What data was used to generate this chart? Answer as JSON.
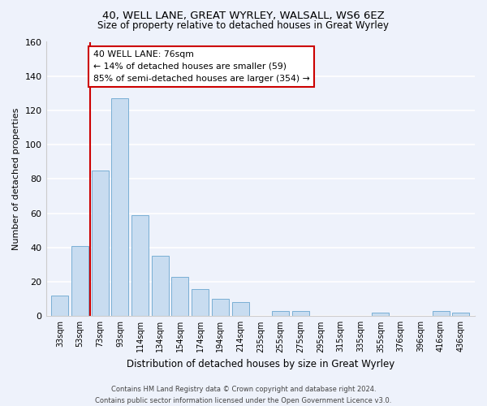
{
  "title": "40, WELL LANE, GREAT WYRLEY, WALSALL, WS6 6EZ",
  "subtitle": "Size of property relative to detached houses in Great Wyrley",
  "xlabel": "Distribution of detached houses by size in Great Wyrley",
  "ylabel": "Number of detached properties",
  "bar_color": "#c8dcf0",
  "bar_edge_color": "#7aafd4",
  "background_color": "#eef2fb",
  "grid_color": "#ffffff",
  "categories": [
    "33sqm",
    "53sqm",
    "73sqm",
    "93sqm",
    "114sqm",
    "134sqm",
    "154sqm",
    "174sqm",
    "194sqm",
    "214sqm",
    "235sqm",
    "255sqm",
    "275sqm",
    "295sqm",
    "315sqm",
    "335sqm",
    "355sqm",
    "376sqm",
    "396sqm",
    "416sqm",
    "436sqm"
  ],
  "values": [
    12,
    41,
    85,
    127,
    59,
    35,
    23,
    16,
    10,
    8,
    0,
    3,
    3,
    0,
    0,
    0,
    2,
    0,
    0,
    3,
    2
  ],
  "ylim": [
    0,
    160
  ],
  "yticks": [
    0,
    20,
    40,
    60,
    80,
    100,
    120,
    140,
    160
  ],
  "annotation_box_text": "40 WELL LANE: 76sqm\n← 14% of detached houses are smaller (59)\n85% of semi-detached houses are larger (354) →",
  "property_line_color": "#cc0000",
  "footer_line1": "Contains HM Land Registry data © Crown copyright and database right 2024.",
  "footer_line2": "Contains public sector information licensed under the Open Government Licence v3.0."
}
